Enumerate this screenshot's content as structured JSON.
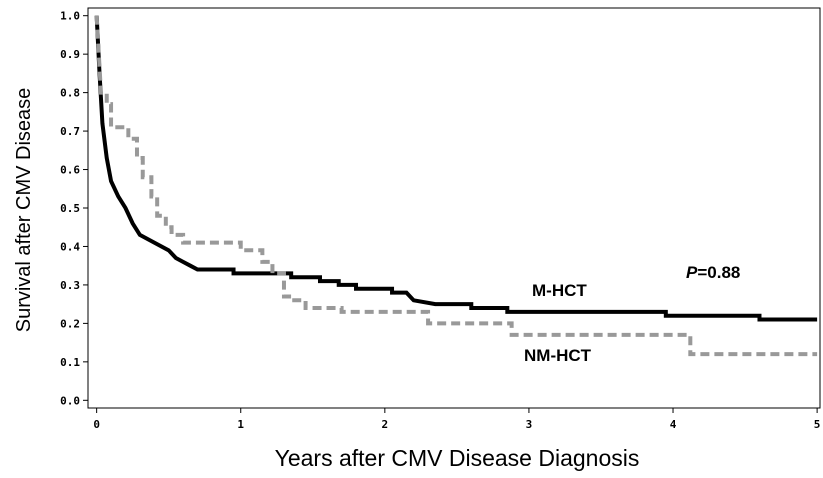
{
  "chart_data": {
    "type": "line",
    "x_label": "Years after CMV Disease Diagnosis",
    "y_label": "Survival after CMV Disease",
    "xlim": [
      -0.06,
      5.02
    ],
    "ylim": [
      -0.02,
      1.02
    ],
    "xticks": [
      0,
      1,
      2,
      3,
      4,
      5
    ],
    "yticks": [
      {
        "value": 0,
        "label": "0.0"
      },
      0.1,
      0.2,
      0.3,
      0.4,
      0.5,
      0.6,
      0.7,
      0.8,
      0.9,
      {
        "value": 1,
        "label": "1.0"
      }
    ],
    "series": [
      {
        "name": "M-HCT",
        "color": "#000000",
        "dashed": false,
        "x": [
          0,
          0.02,
          0.04,
          0.07,
          0.1,
          0.15,
          0.2,
          0.25,
          0.3,
          0.4,
          0.5,
          0.55,
          0.6,
          0.65,
          0.7,
          0.95,
          0.95,
          1.35,
          1.35,
          1.55,
          1.55,
          1.68,
          1.68,
          1.8,
          1.8,
          2.05,
          2.05,
          2.15,
          2.2,
          2.35,
          2.6,
          2.6,
          2.85,
          2.85,
          3.95,
          3.95,
          4.6,
          4.6,
          5.0
        ],
        "values": [
          1.0,
          0.85,
          0.72,
          0.63,
          0.57,
          0.53,
          0.5,
          0.46,
          0.43,
          0.41,
          0.39,
          0.37,
          0.36,
          0.35,
          0.34,
          0.34,
          0.33,
          0.33,
          0.32,
          0.32,
          0.31,
          0.31,
          0.3,
          0.3,
          0.29,
          0.29,
          0.28,
          0.28,
          0.26,
          0.25,
          0.25,
          0.24,
          0.24,
          0.23,
          0.23,
          0.22,
          0.22,
          0.21,
          0.21
        ]
      },
      {
        "name": "NM-HCT",
        "color": "#999999",
        "dashed": true,
        "x": [
          0,
          0.03,
          0.07,
          0.07,
          0.1,
          0.1,
          0.22,
          0.22,
          0.28,
          0.28,
          0.32,
          0.32,
          0.38,
          0.38,
          0.42,
          0.42,
          0.48,
          0.48,
          0.52,
          0.52,
          0.6,
          0.6,
          1.0,
          1.0,
          1.15,
          1.15,
          1.22,
          1.22,
          1.3,
          1.3,
          1.35,
          1.35,
          1.45,
          1.45,
          1.7,
          1.7,
          2.3,
          2.3,
          2.88,
          2.88,
          4.12,
          4.12,
          5.0
        ],
        "values": [
          1.0,
          0.8,
          0.8,
          0.77,
          0.77,
          0.71,
          0.71,
          0.68,
          0.68,
          0.63,
          0.63,
          0.58,
          0.58,
          0.53,
          0.53,
          0.48,
          0.48,
          0.45,
          0.45,
          0.43,
          0.43,
          0.41,
          0.41,
          0.39,
          0.39,
          0.36,
          0.36,
          0.33,
          0.33,
          0.27,
          0.27,
          0.26,
          0.26,
          0.24,
          0.24,
          0.23,
          0.23,
          0.2,
          0.2,
          0.17,
          0.17,
          0.12,
          0.12
        ]
      }
    ],
    "p_symbol": "P",
    "p_value": "=0.88"
  }
}
